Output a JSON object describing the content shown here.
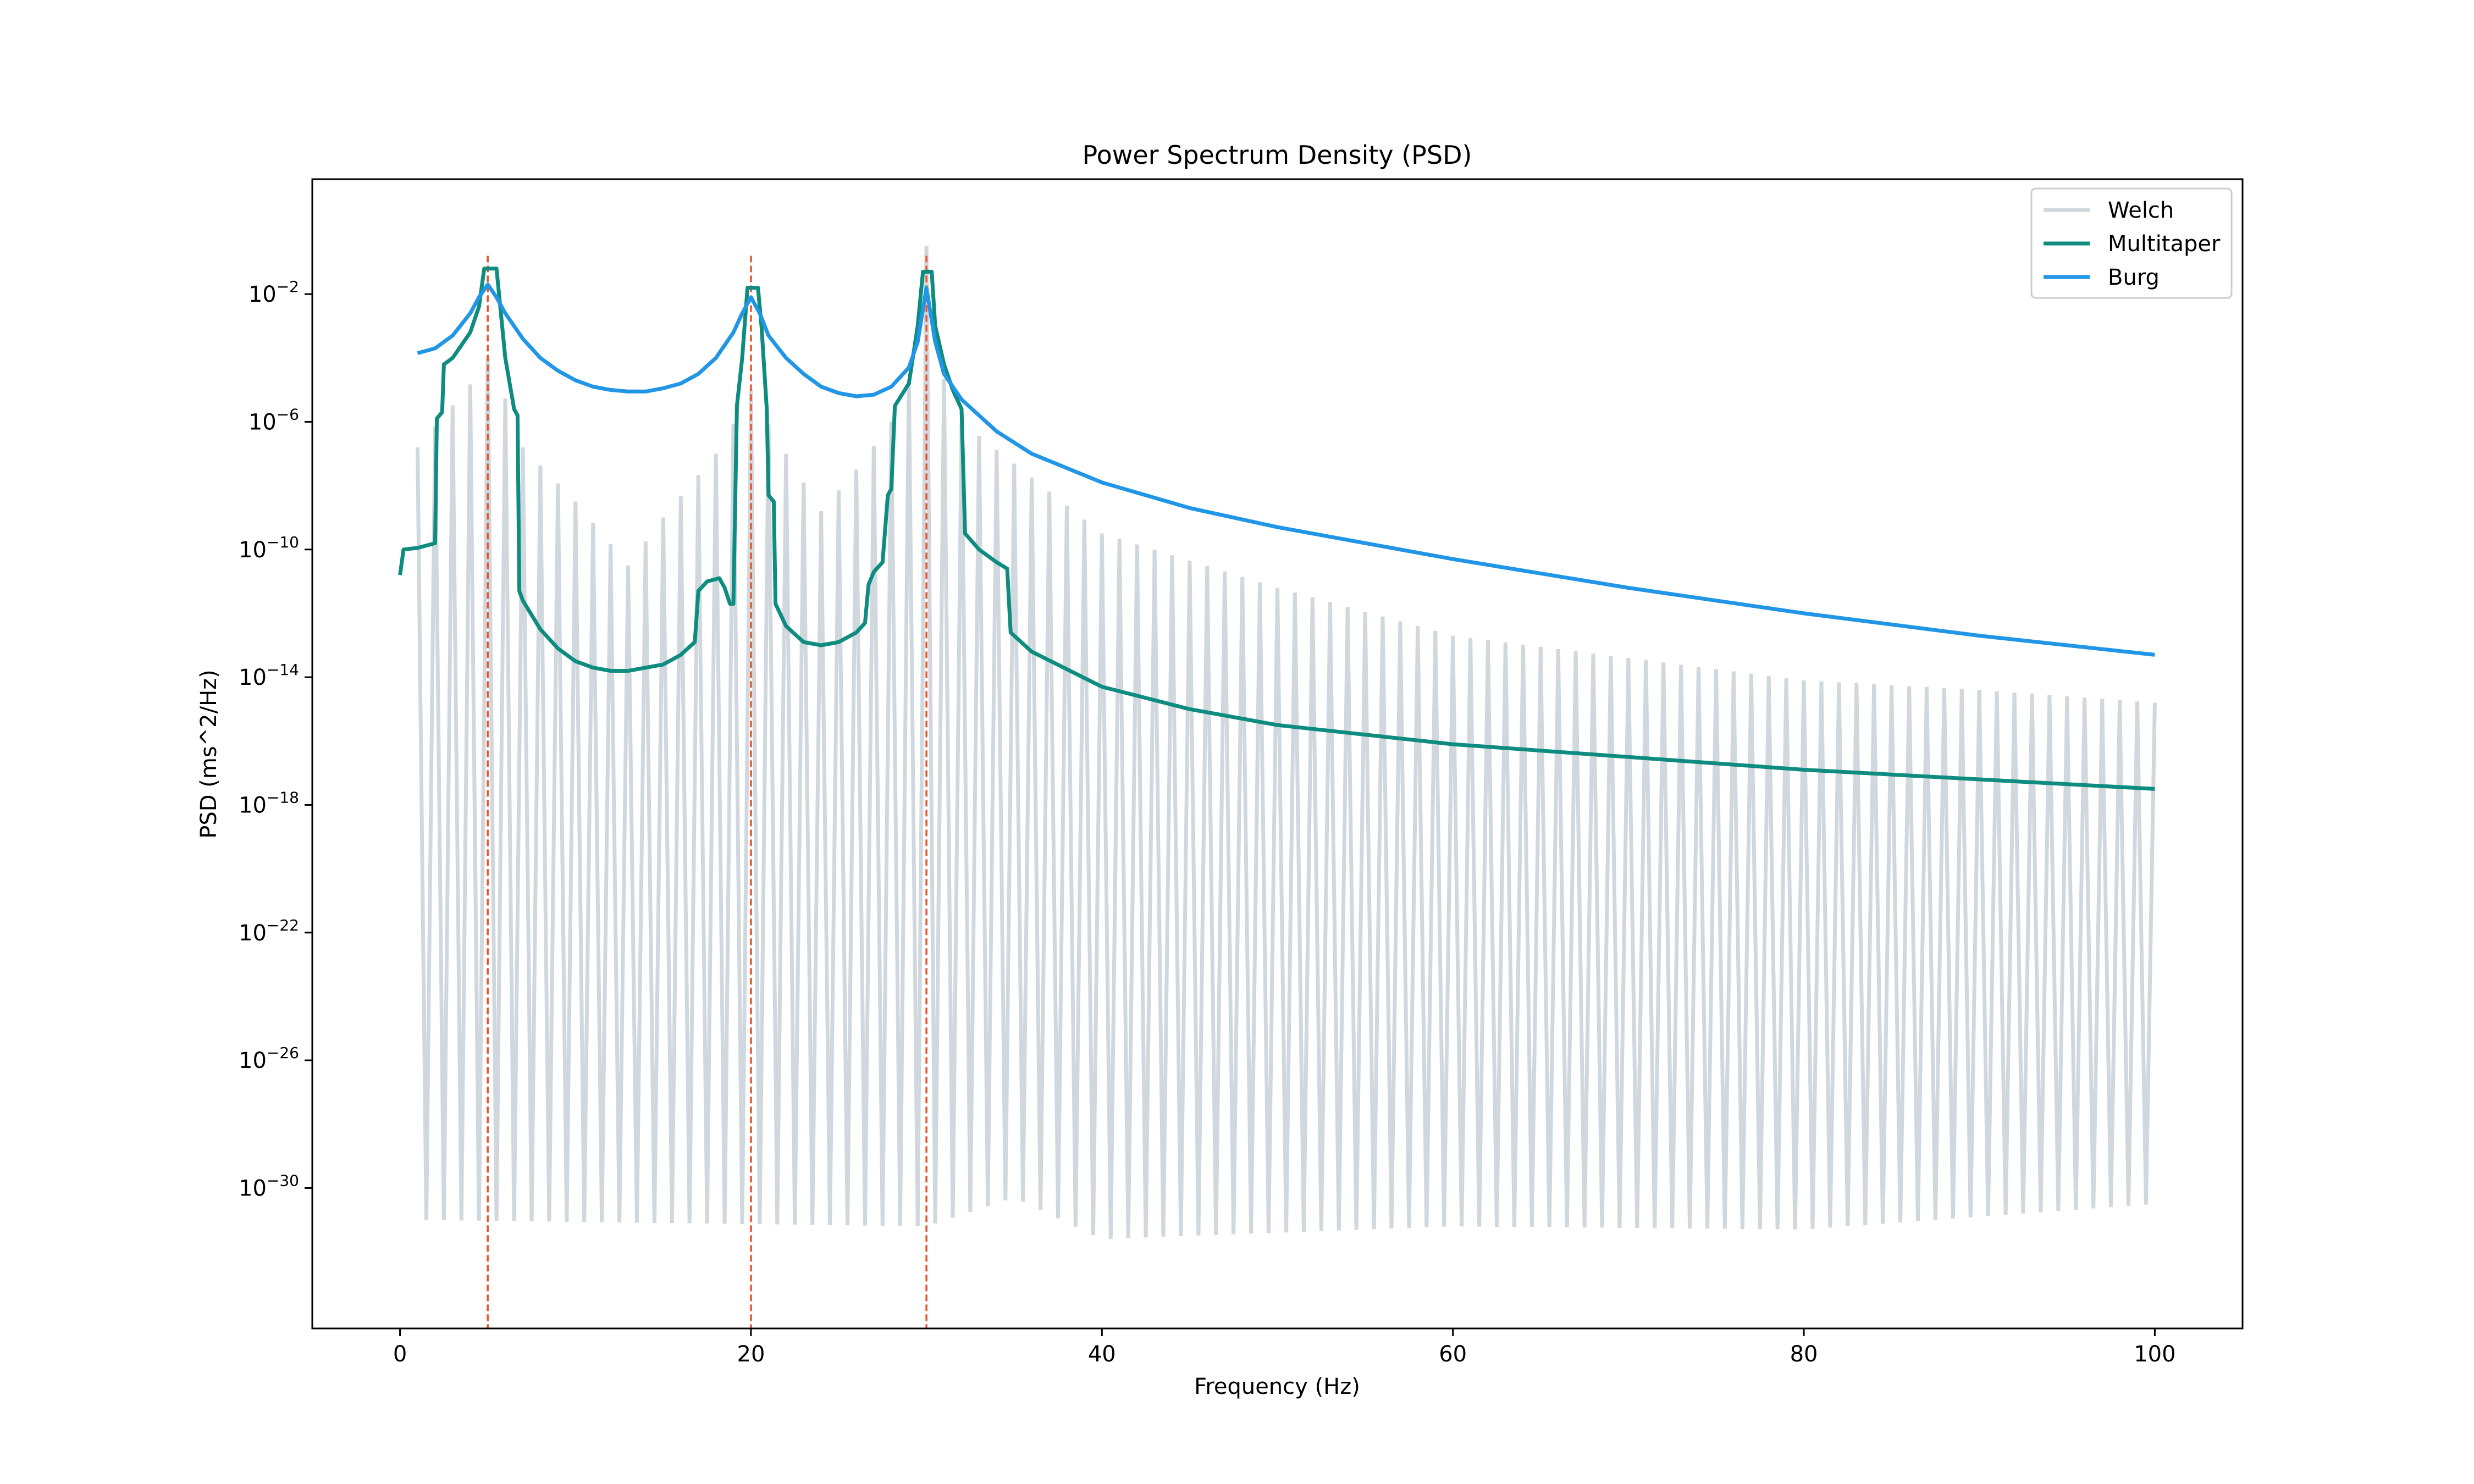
{
  "chart_data": {
    "type": "line",
    "title": "Power Spectrum Density (PSD)",
    "xlabel": "Frequency (Hz)",
    "ylabel": "PSD (ms^2/Hz)",
    "xlim": [
      -5,
      105
    ],
    "ylim": [
      -34.4,
      1.6
    ],
    "yscale": "log",
    "x_ticks": [
      0,
      20,
      40,
      60,
      80,
      100
    ],
    "y_ticks": [
      {
        "exp": -2,
        "base": "10",
        "label": "−2"
      },
      {
        "exp": -6,
        "base": "10",
        "label": "−6"
      },
      {
        "exp": -10,
        "base": "10",
        "label": "−10"
      },
      {
        "exp": -14,
        "base": "10",
        "label": "−14"
      },
      {
        "exp": -18,
        "base": "10",
        "label": "−18"
      },
      {
        "exp": -22,
        "base": "10",
        "label": "−22"
      },
      {
        "exp": -26,
        "base": "10",
        "label": "−26"
      },
      {
        "exp": -30,
        "base": "10",
        "label": "−30"
      }
    ],
    "grid": false,
    "legend_position": "top-right",
    "vlines": {
      "x": [
        5,
        20,
        30
      ],
      "color": "#e8532b",
      "style": "dashed"
    },
    "series": [
      {
        "name": "Welch",
        "color": "#d0d8de",
        "kind": "oscillating",
        "x_range": [
          1,
          100
        ],
        "upper_envelope": [
          [
            1,
            -6.8
          ],
          [
            4.5,
            -4.5
          ],
          [
            5,
            -4.0
          ],
          [
            5.5,
            -4.5
          ],
          [
            7,
            -6.8
          ],
          [
            10,
            -8.5
          ],
          [
            13,
            -10.5
          ],
          [
            15,
            -9.0
          ],
          [
            18,
            -7.0
          ],
          [
            19.6,
            -5.5
          ],
          [
            20,
            -5.0
          ],
          [
            20.4,
            -5.5
          ],
          [
            22,
            -7.0
          ],
          [
            24,
            -8.8
          ],
          [
            26,
            -7.5
          ],
          [
            28,
            -6.0
          ],
          [
            29.5,
            -4.0
          ],
          [
            30,
            -0.5
          ],
          [
            30.5,
            -4.0
          ],
          [
            32,
            -6.0
          ],
          [
            40,
            -9.5
          ],
          [
            50,
            -11.2
          ],
          [
            60,
            -12.7
          ],
          [
            70,
            -13.4
          ],
          [
            80,
            -14.1
          ],
          [
            90,
            -14.4
          ],
          [
            100,
            -14.8
          ]
        ],
        "lower_envelope": [
          [
            1,
            -31.0
          ],
          [
            30,
            -31.2
          ],
          [
            35,
            -30.3
          ],
          [
            40,
            -31.6
          ],
          [
            60,
            -31.2
          ],
          [
            80,
            -31.3
          ],
          [
            100,
            -30.5
          ]
        ]
      },
      {
        "name": "Multitaper",
        "color": "#0f8c80",
        "kind": "line",
        "points": [
          [
            0,
            -10.8
          ],
          [
            0.2,
            -10.0
          ],
          [
            1,
            -9.95
          ],
          [
            2,
            -9.8
          ],
          [
            2.1,
            -5.9
          ],
          [
            2.4,
            -5.7
          ],
          [
            2.5,
            -4.2
          ],
          [
            3,
            -4.0
          ],
          [
            4,
            -3.2
          ],
          [
            4.5,
            -2.4
          ],
          [
            4.8,
            -1.2
          ],
          [
            5.5,
            -1.2
          ],
          [
            6,
            -4.0
          ],
          [
            6.5,
            -5.6
          ],
          [
            6.7,
            -5.8
          ],
          [
            6.8,
            -11.3
          ],
          [
            7,
            -11.6
          ],
          [
            8,
            -12.5
          ],
          [
            9,
            -13.1
          ],
          [
            10,
            -13.5
          ],
          [
            11,
            -13.7
          ],
          [
            12,
            -13.8
          ],
          [
            13,
            -13.8
          ],
          [
            15,
            -13.6
          ],
          [
            16,
            -13.3
          ],
          [
            16.8,
            -12.9
          ],
          [
            17,
            -11.3
          ],
          [
            17.5,
            -11.0
          ],
          [
            18.2,
            -10.9
          ],
          [
            18.5,
            -11.2
          ],
          [
            18.8,
            -11.7
          ],
          [
            19.0,
            -11.7
          ],
          [
            19.2,
            -5.5
          ],
          [
            19.5,
            -4.0
          ],
          [
            19.8,
            -1.8
          ],
          [
            20.4,
            -1.8
          ],
          [
            20.6,
            -3.0
          ],
          [
            20.9,
            -5.6
          ],
          [
            21.0,
            -8.3
          ],
          [
            21.3,
            -8.5
          ],
          [
            21.4,
            -11.7
          ],
          [
            22,
            -12.4
          ],
          [
            23,
            -12.9
          ],
          [
            24,
            -13.0
          ],
          [
            25,
            -12.9
          ],
          [
            26,
            -12.6
          ],
          [
            26.5,
            -12.3
          ],
          [
            26.7,
            -11.1
          ],
          [
            27,
            -10.7
          ],
          [
            27.5,
            -10.4
          ],
          [
            27.8,
            -8.3
          ],
          [
            28,
            -8.1
          ],
          [
            28.2,
            -5.5
          ],
          [
            29,
            -4.8
          ],
          [
            29.5,
            -3.0
          ],
          [
            29.8,
            -1.3
          ],
          [
            30.3,
            -1.3
          ],
          [
            30.5,
            -3.0
          ],
          [
            31,
            -4.2
          ],
          [
            31.5,
            -5.0
          ],
          [
            32,
            -5.6
          ],
          [
            32.2,
            -9.5
          ],
          [
            33,
            -10.0
          ],
          [
            34,
            -10.4
          ],
          [
            34.6,
            -10.6
          ],
          [
            34.8,
            -12.6
          ],
          [
            36,
            -13.2
          ],
          [
            40,
            -14.3
          ],
          [
            45,
            -15.0
          ],
          [
            50,
            -15.5
          ],
          [
            60,
            -16.1
          ],
          [
            70,
            -16.5
          ],
          [
            80,
            -16.9
          ],
          [
            90,
            -17.2
          ],
          [
            100,
            -17.5
          ]
        ]
      },
      {
        "name": "Burg",
        "color": "#2196e6",
        "kind": "line",
        "points": [
          [
            1,
            -3.85
          ],
          [
            2,
            -3.7
          ],
          [
            3,
            -3.3
          ],
          [
            4,
            -2.6
          ],
          [
            4.5,
            -2.1
          ],
          [
            5,
            -1.7
          ],
          [
            5.5,
            -2.1
          ],
          [
            6,
            -2.6
          ],
          [
            7,
            -3.4
          ],
          [
            8,
            -4.0
          ],
          [
            9,
            -4.4
          ],
          [
            10,
            -4.7
          ],
          [
            11,
            -4.9
          ],
          [
            12,
            -5.0
          ],
          [
            13,
            -5.05
          ],
          [
            14,
            -5.05
          ],
          [
            15,
            -4.95
          ],
          [
            16,
            -4.8
          ],
          [
            17,
            -4.5
          ],
          [
            18,
            -4.0
          ],
          [
            19,
            -3.2
          ],
          [
            19.5,
            -2.6
          ],
          [
            20,
            -2.1
          ],
          [
            20.5,
            -2.6
          ],
          [
            21,
            -3.3
          ],
          [
            22,
            -4.0
          ],
          [
            23,
            -4.5
          ],
          [
            24,
            -4.9
          ],
          [
            25,
            -5.1
          ],
          [
            26,
            -5.2
          ],
          [
            27,
            -5.15
          ],
          [
            28,
            -4.9
          ],
          [
            29,
            -4.3
          ],
          [
            29.5,
            -3.5
          ],
          [
            30,
            -1.8
          ],
          [
            30.5,
            -3.5
          ],
          [
            31,
            -4.5
          ],
          [
            32,
            -5.3
          ],
          [
            34,
            -6.3
          ],
          [
            36,
            -7.0
          ],
          [
            40,
            -7.9
          ],
          [
            45,
            -8.7
          ],
          [
            50,
            -9.3
          ],
          [
            55,
            -9.8
          ],
          [
            60,
            -10.3
          ],
          [
            70,
            -11.2
          ],
          [
            80,
            -12.0
          ],
          [
            90,
            -12.7
          ],
          [
            100,
            -13.3
          ]
        ]
      }
    ]
  }
}
